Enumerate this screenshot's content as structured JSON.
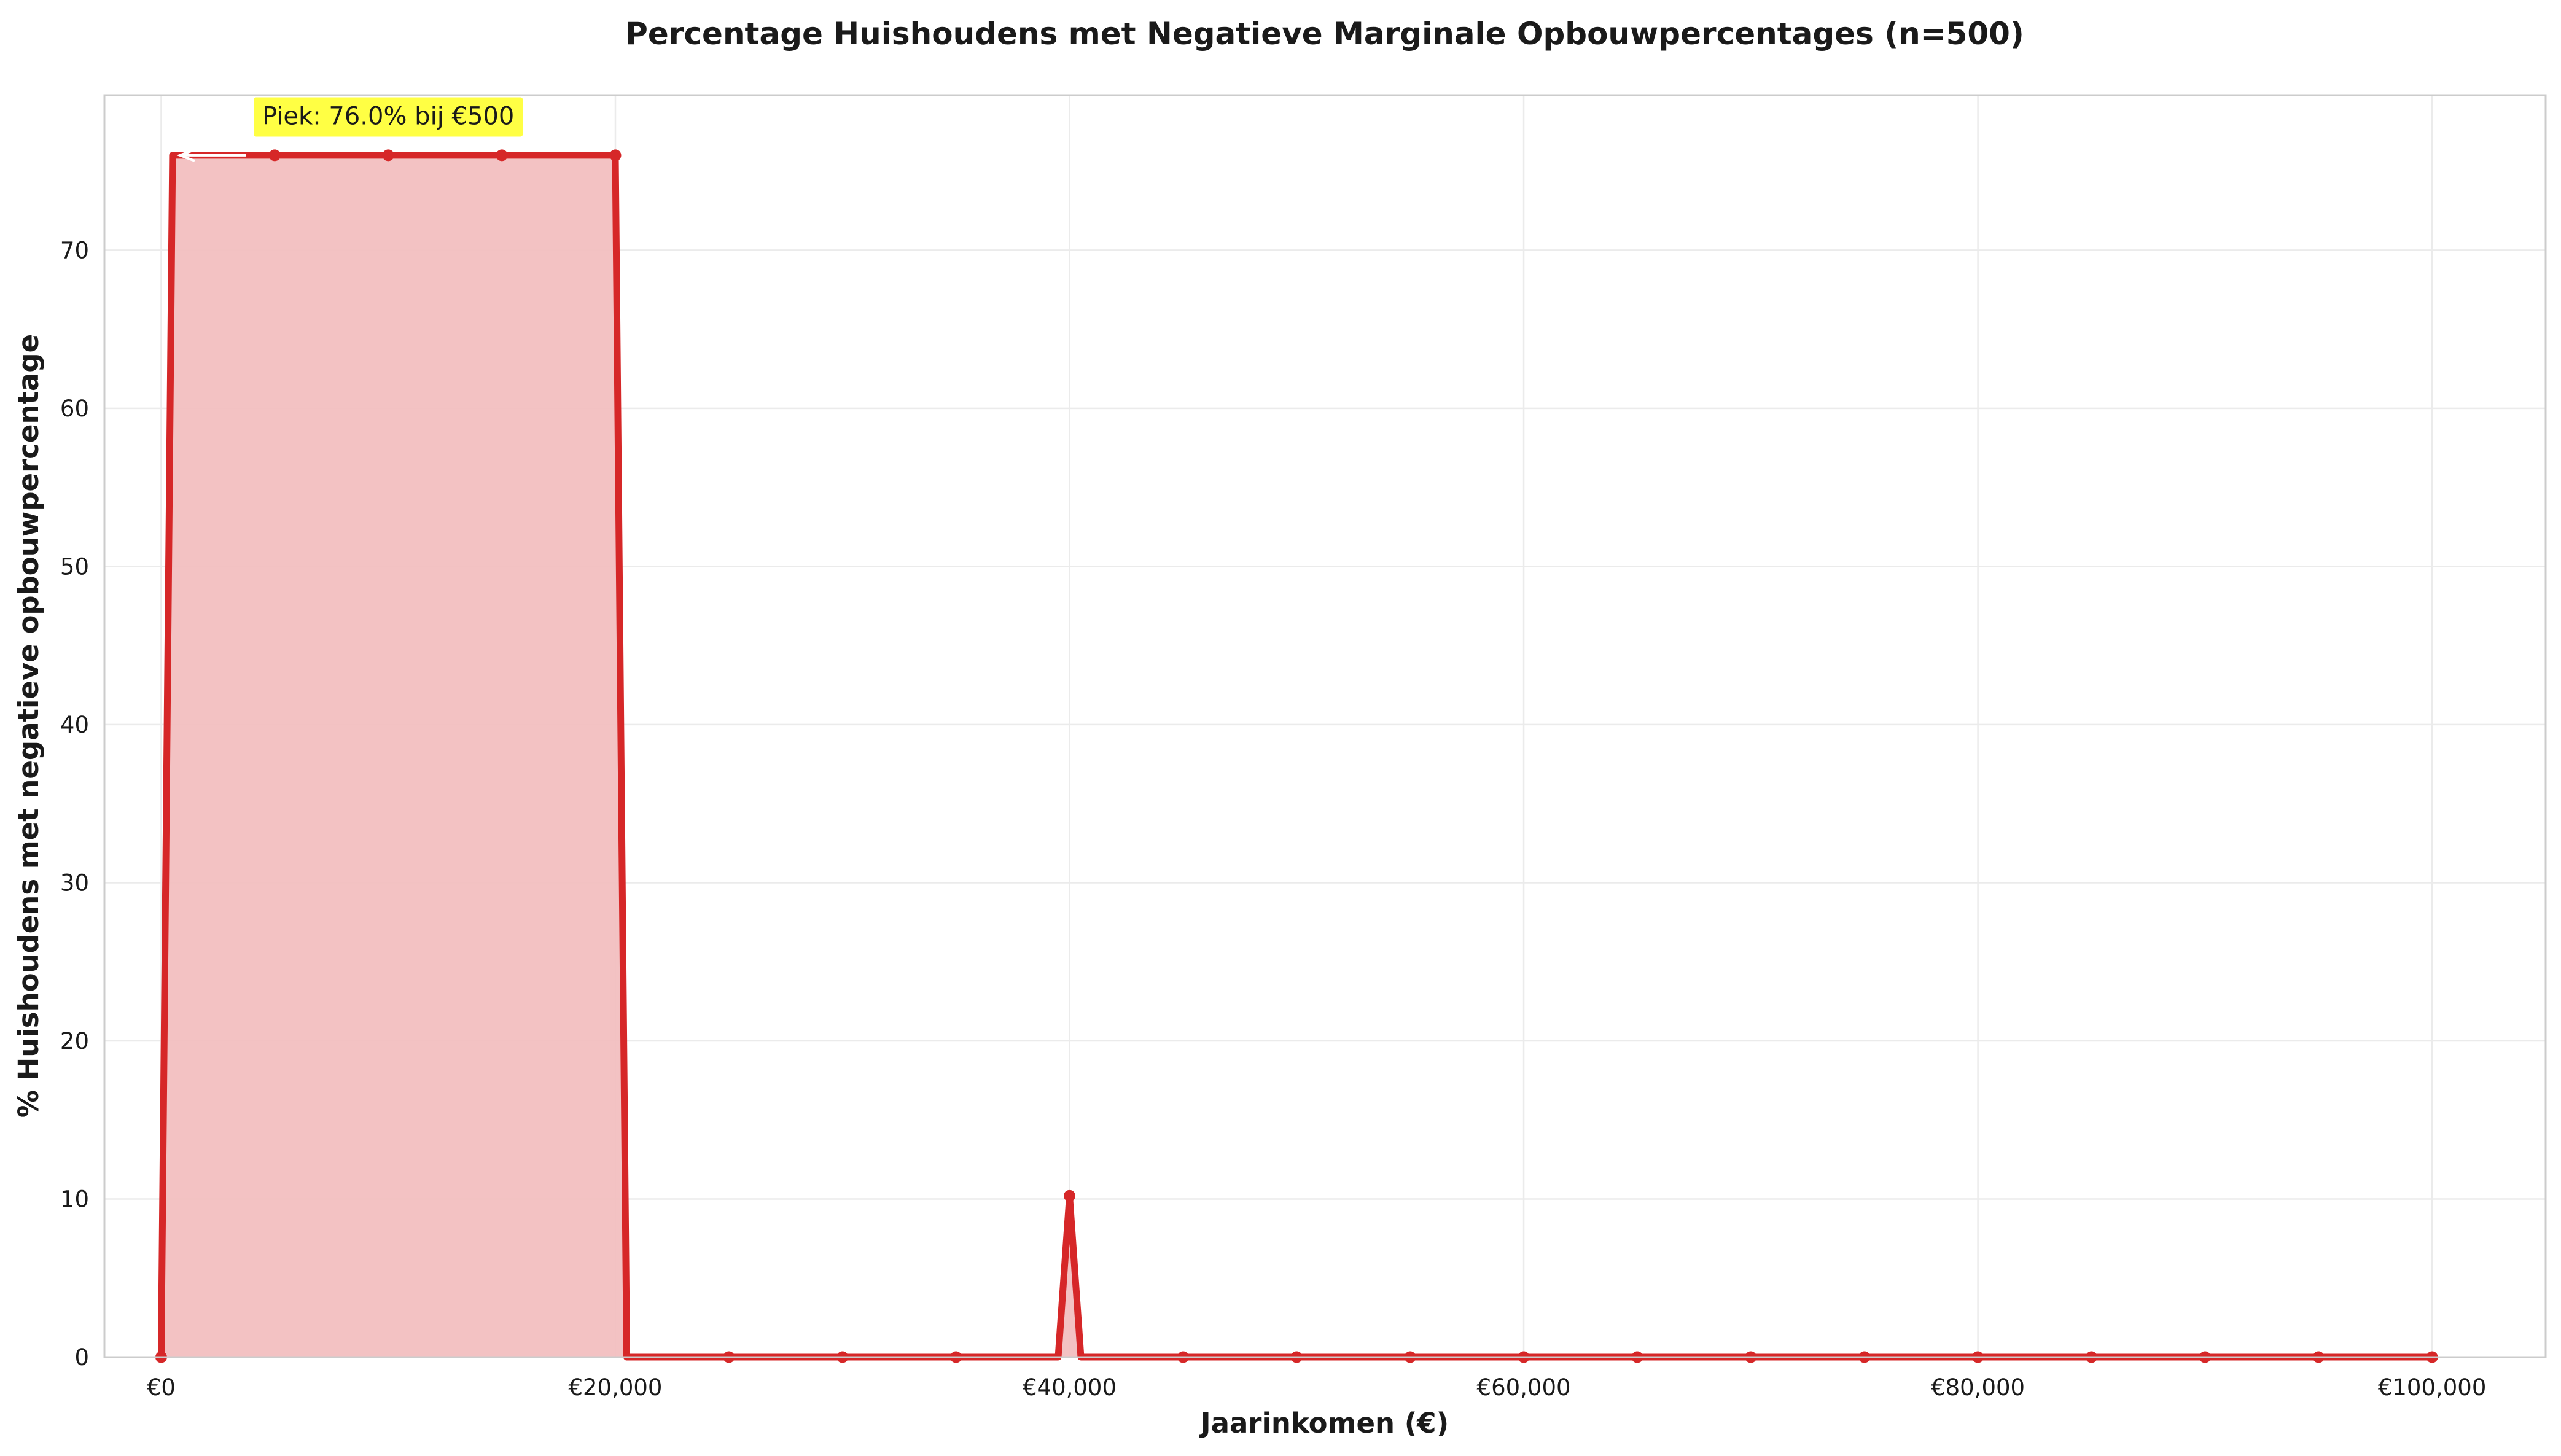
{
  "chart_data": {
    "type": "area",
    "title": "Percentage Huishoudens met Negatieve Marginale Opbouwpercentages (n=500)",
    "xlabel": "Jaarinkomen (€)",
    "ylabel": "% Huishoudens met negatieve opbouwpercentage",
    "xlim": [
      -2500,
      105000
    ],
    "ylim": [
      0,
      79.8
    ],
    "xticks": [
      0,
      20000,
      40000,
      60000,
      80000,
      100000
    ],
    "xtick_labels": [
      "€0",
      "€20,000",
      "€40,000",
      "€60,000",
      "€80,000",
      "€100,000"
    ],
    "yticks": [
      0,
      10,
      20,
      30,
      40,
      50,
      60,
      70
    ],
    "ytick_labels": [
      "0",
      "10",
      "20",
      "30",
      "40",
      "50",
      "60",
      "70"
    ],
    "grid": true,
    "colors": {
      "line": "#d62728",
      "fill": "#f2bfc0",
      "marker": "#d62728",
      "annotation_bg": "#ffff44"
    },
    "series": [
      {
        "x": [
          0,
          500,
          5000,
          10000,
          15000,
          20000,
          20500,
          25000,
          30000,
          35000,
          39500,
          40000,
          40500,
          45000,
          50000,
          55000,
          60000,
          65000,
          70000,
          75000,
          80000,
          85000,
          90000,
          95000,
          100000
        ],
        "values": [
          0,
          76,
          76,
          76,
          76,
          76,
          0,
          0,
          0,
          0,
          0,
          10.2,
          0,
          0,
          0,
          0,
          0,
          0,
          0,
          0,
          0,
          0,
          0,
          0,
          0
        ],
        "marker_x": [
          0,
          5000,
          10000,
          15000,
          20000,
          25000,
          30000,
          35000,
          40000,
          45000,
          50000,
          55000,
          60000,
          65000,
          70000,
          75000,
          80000,
          85000,
          90000,
          95000,
          100000
        ],
        "marker_y": [
          0,
          76,
          76,
          76,
          76,
          0,
          0,
          0,
          10.2,
          0,
          0,
          0,
          0,
          0,
          0,
          0,
          0,
          0,
          0,
          0,
          0
        ]
      }
    ],
    "annotation": {
      "text": "Piek: 76.0% bij €500",
      "x": 500,
      "y": 76,
      "text_x": 10000,
      "text_y": 78.5
    }
  }
}
